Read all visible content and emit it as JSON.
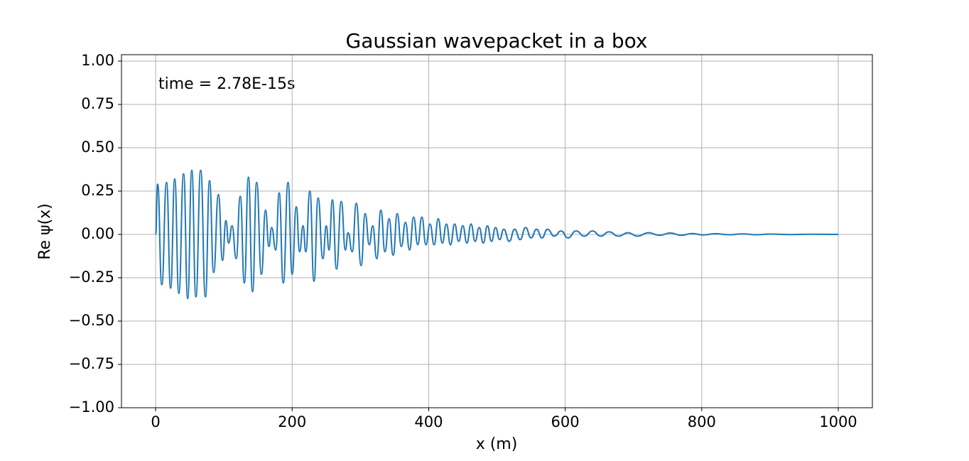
{
  "chart_data": {
    "type": "line",
    "title": "Gaussian wavepacket in a box",
    "x_label": "x (m)",
    "y_label": "Re ψ(x)",
    "annotation": "time = 2.78E-15s",
    "x": [
      0,
      3,
      9,
      16,
      22,
      28,
      34,
      41,
      47,
      53,
      59,
      66,
      73,
      79,
      85,
      92,
      98,
      103,
      107,
      112,
      118,
      124,
      130,
      136,
      142,
      148,
      155,
      161,
      166,
      170,
      176,
      181,
      187,
      194,
      200,
      206,
      211,
      216,
      220,
      226,
      232,
      238,
      245,
      250,
      254,
      259,
      265,
      272,
      278,
      282,
      288,
      294,
      301,
      307,
      313,
      318,
      324,
      330,
      336,
      342,
      348,
      354,
      360,
      366,
      372,
      378,
      384,
      390,
      396,
      402,
      408,
      414,
      420,
      426,
      432,
      438,
      444,
      450,
      456,
      462,
      468,
      474,
      480,
      486,
      492,
      498,
      504,
      510,
      518,
      526,
      534,
      542,
      550,
      558,
      566,
      574,
      584,
      594,
      604,
      616,
      628,
      640,
      652,
      664,
      678,
      692,
      706,
      722,
      738,
      754,
      770,
      786,
      802,
      820,
      840,
      860,
      880,
      900,
      930,
      960,
      1000
    ],
    "series": [
      {
        "color": "#1f77b4",
        "values": [
          0,
          0.29,
          -0.29,
          0.3,
          -0.31,
          0.32,
          -0.34,
          0.35,
          -0.37,
          0.37,
          -0.36,
          0.37,
          -0.36,
          0.31,
          -0.22,
          0.23,
          -0.15,
          0.08,
          -0.05,
          0.05,
          -0.14,
          0.22,
          -0.28,
          0.33,
          -0.33,
          0.3,
          -0.23,
          0.14,
          -0.07,
          0.04,
          -0.09,
          0.24,
          -0.28,
          0.3,
          -0.23,
          0.16,
          -0.1,
          0.05,
          -0.1,
          0.25,
          -0.27,
          0.21,
          -0.14,
          0.05,
          -0.09,
          0.2,
          -0.2,
          0.19,
          -0.09,
          0.01,
          -0.1,
          0.18,
          -0.18,
          0.12,
          -0.06,
          0.05,
          -0.14,
          0.14,
          -0.1,
          0.09,
          -0.12,
          0.12,
          -0.07,
          0.07,
          -0.09,
          0.1,
          -0.06,
          0.1,
          -0.06,
          0.06,
          -0.06,
          0.09,
          -0.05,
          0.06,
          -0.06,
          0.06,
          -0.04,
          0.05,
          -0.05,
          0.06,
          -0.04,
          0.04,
          -0.05,
          0.05,
          -0.04,
          0.04,
          -0.03,
          0.03,
          -0.04,
          0.03,
          -0.03,
          0.04,
          -0.02,
          0.03,
          -0.02,
          0.03,
          -0.01,
          0.02,
          -0.02,
          0.02,
          -0.01,
          0.02,
          -0.01,
          0.015,
          -0.01,
          0.01,
          -0.01,
          0.01,
          -0.005,
          0.008,
          -0.005,
          0.005,
          -0.003,
          0.004,
          -0.002,
          0.003,
          -0.002,
          0.002,
          -0.001,
          0.001,
          0
        ]
      }
    ],
    "xlim": [
      -50,
      1050
    ],
    "ylim": [
      -1.0,
      1.037
    ],
    "xticks": [
      0,
      200,
      400,
      600,
      800,
      1000
    ],
    "yticks": [
      {
        "value": -1.0,
        "label": "−1.00"
      },
      {
        "value": -0.75,
        "label": "−0.75"
      },
      {
        "value": -0.5,
        "label": "−0.50"
      },
      {
        "value": -0.25,
        "label": "−0.25"
      },
      {
        "value": 0,
        "label": "0.00"
      },
      {
        "value": 0.25,
        "label": "0.25"
      },
      {
        "value": 0.5,
        "label": "0.50"
      },
      {
        "value": 0.75,
        "label": "0.75"
      },
      {
        "value": 1.0,
        "label": "1.00"
      }
    ],
    "grid": true
  }
}
